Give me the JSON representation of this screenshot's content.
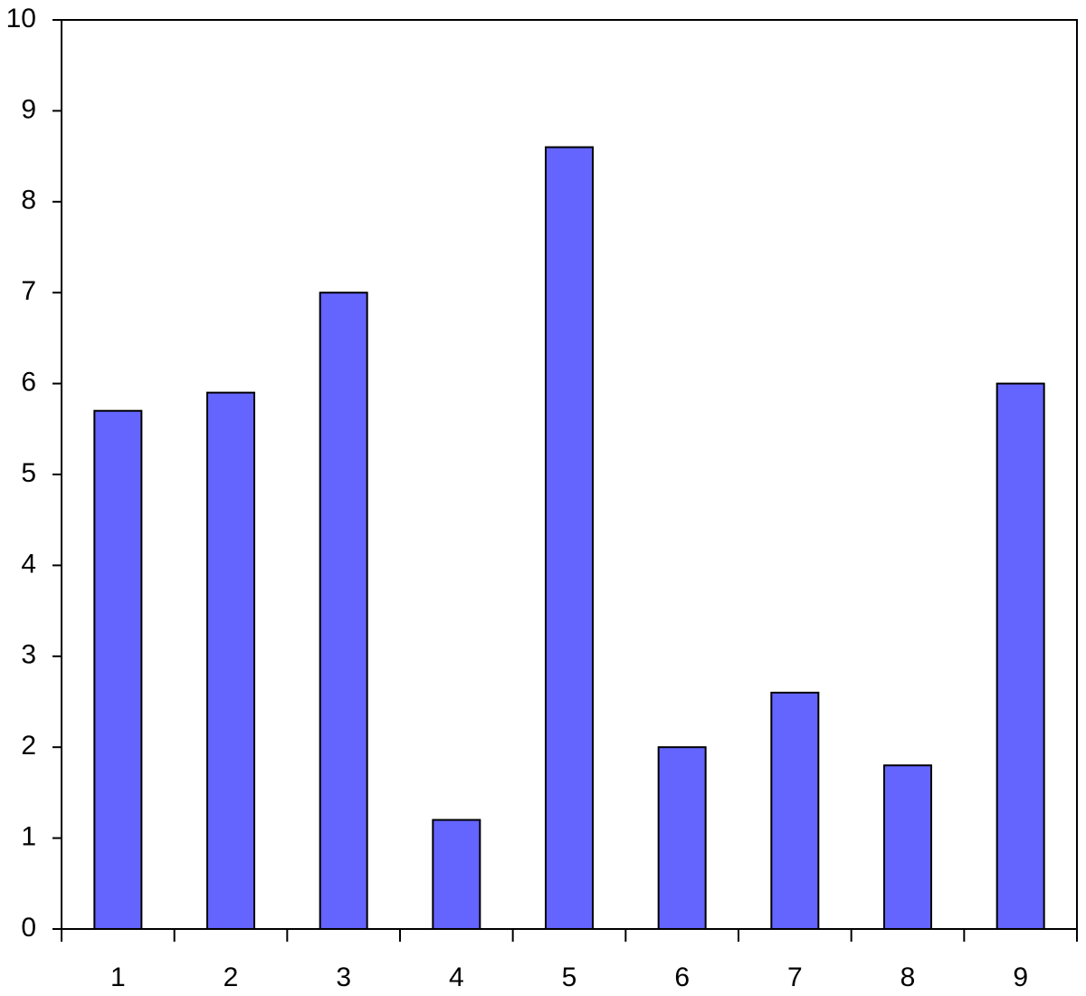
{
  "chart_data": {
    "type": "bar",
    "categories": [
      "1",
      "2",
      "3",
      "4",
      "5",
      "6",
      "7",
      "8",
      "9"
    ],
    "values": [
      5.7,
      5.9,
      7,
      1.2,
      8.6,
      2,
      2.6,
      1.8,
      6
    ],
    "color": "#6464ff",
    "ylim": [
      0,
      10
    ],
    "yticks": [
      0,
      1,
      2,
      3,
      4,
      5,
      6,
      7,
      8,
      9,
      10
    ],
    "grid": false
  }
}
